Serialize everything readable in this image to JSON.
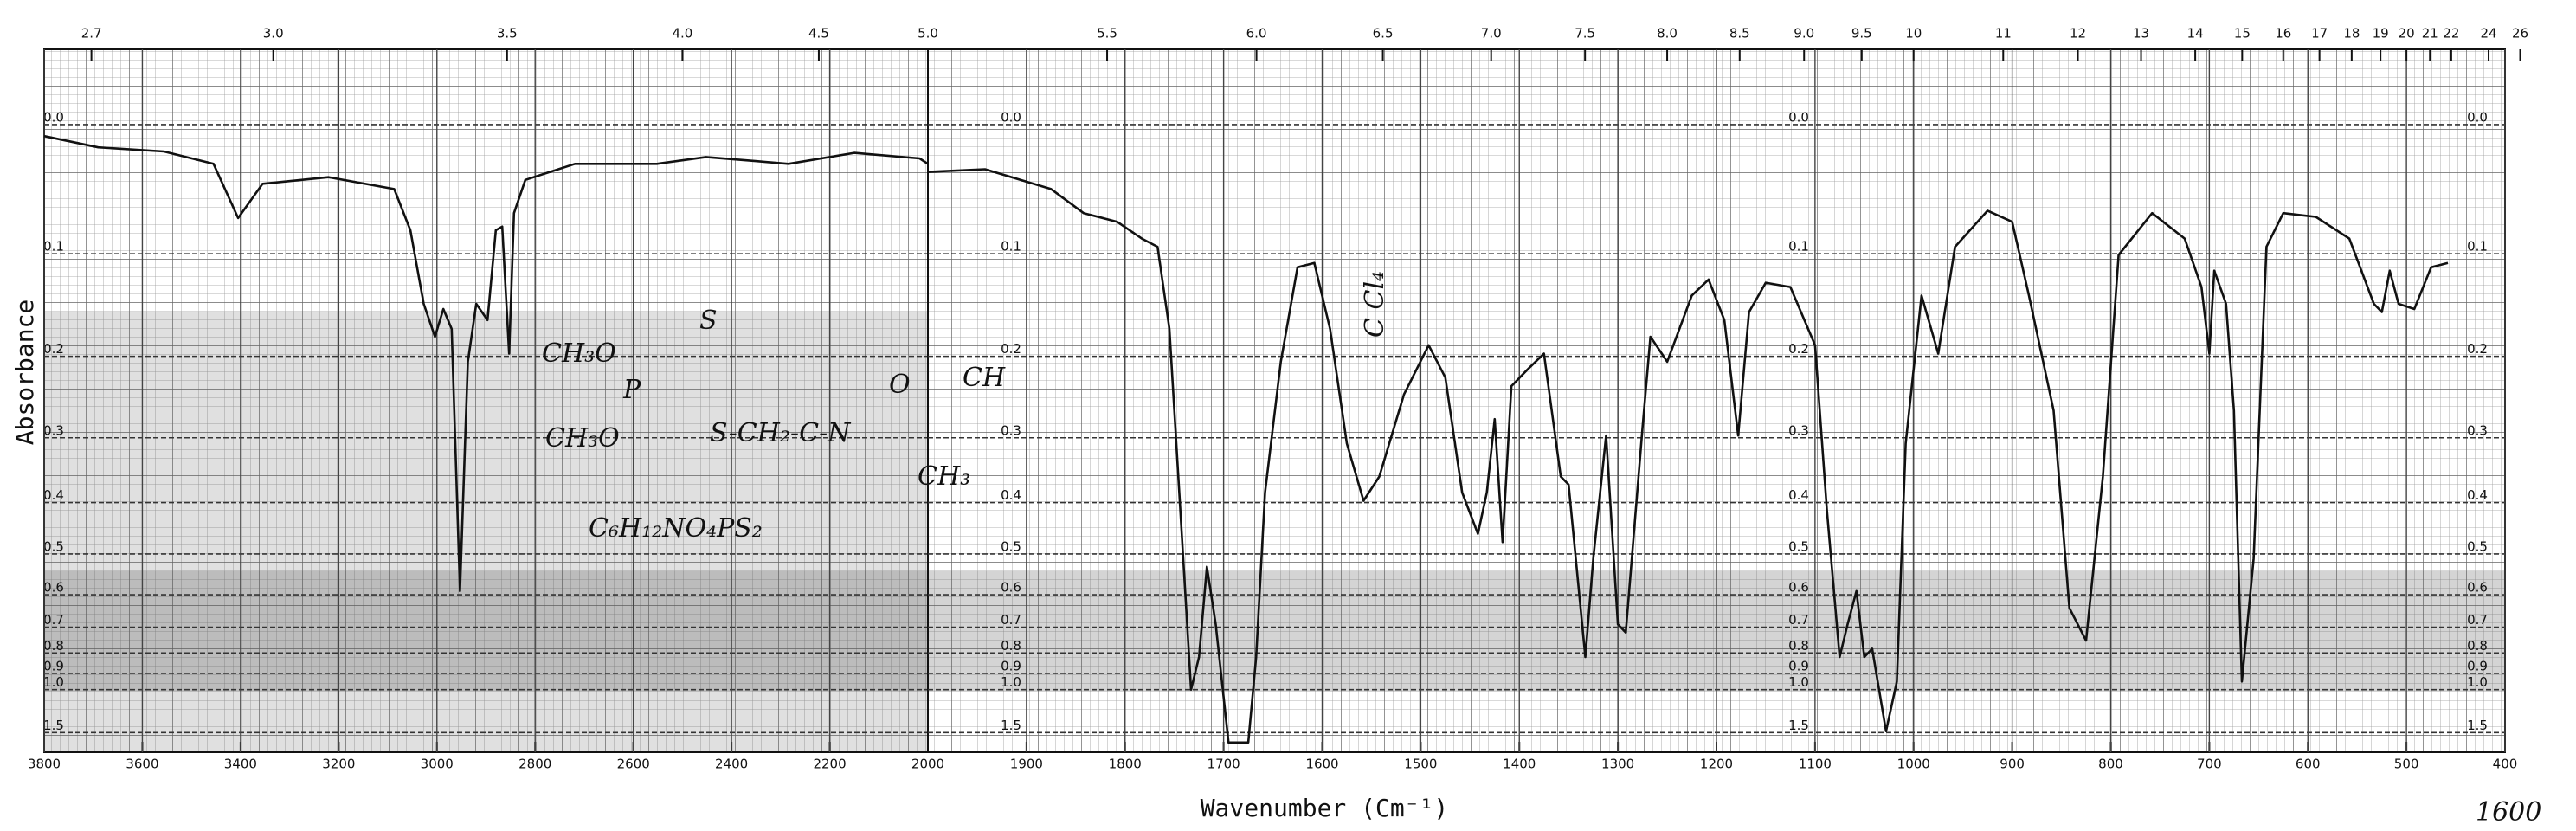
{
  "figure": {
    "ylabel": "Absorbance",
    "xlabel": "Wavenumber (Cm⁻¹)",
    "annotations": [
      "C Cl₄",
      "CH₃O",
      "S",
      "CH₃O",
      "P",
      "S-CH₂-C-N",
      "O",
      "CH",
      "CH₃",
      "C₆H₁₂NO₄PS₂",
      "1600"
    ]
  },
  "chart_data": [
    {
      "type": "line",
      "xlim": [
        3800,
        2000
      ],
      "ylim": [
        2,
        -0.04
      ],
      "yscale": "transmittance",
      "grid": true,
      "x2_scale": "reciprocal",
      "xticks": [
        3800,
        3600,
        3400,
        3200,
        3000,
        2800,
        2600,
        2400,
        2200,
        2000
      ],
      "x2ticks": [
        2.7,
        {
          "value": 3,
          "label": "3.0"
        },
        3.5,
        {
          "value": 4,
          "label": "4.0"
        },
        4.5,
        {
          "value": 5,
          "label": "5.0"
        }
      ],
      "yticks": [
        {
          "value": 0,
          "label": "0.0"
        },
        0.1,
        0.2,
        0.3,
        0.4,
        0.5,
        0.6,
        0.7,
        0.8,
        0.9,
        {
          "value": 1,
          "label": "1.0"
        },
        1.5
      ],
      "x": [
        3800,
        3690,
        3556,
        3455,
        3405,
        3355,
        3221,
        3087,
        3054,
        3027,
        3004,
        2987,
        2970,
        2953,
        2937,
        2920,
        2897,
        2880,
        2867,
        2853,
        2843,
        2820,
        2719,
        2552,
        2452,
        2351,
        2284,
        2150,
        2017,
        2000
      ],
      "series": [
        {
          "color": "#111111",
          "values": [
            0.008,
            0.016,
            0.019,
            0.028,
            0.07,
            0.043,
            0.038,
            0.047,
            0.08,
            0.146,
            0.179,
            0.151,
            0.171,
            0.59,
            0.206,
            0.146,
            0.162,
            0.08,
            0.077,
            0.197,
            0.066,
            0.04,
            0.028,
            0.028,
            0.023,
            0.026,
            0.028,
            0.02,
            0.024,
            0.028
          ]
        }
      ]
    },
    {
      "type": "line",
      "xlim": [
        2000,
        400
      ],
      "ylim": [
        2,
        -0.04
      ],
      "yscale": "transmittance",
      "grid": true,
      "x2_scale": "reciprocal",
      "xticks": [
        1900,
        1800,
        1700,
        1600,
        1500,
        1400,
        1300,
        1200,
        1100,
        1000,
        900,
        800,
        700,
        600,
        500,
        400
      ],
      "x2ticks": [
        5.5,
        {
          "value": 6,
          "label": "6.0"
        },
        6.5,
        {
          "value": 7,
          "label": "7.0"
        },
        7.5,
        {
          "value": 8,
          "label": "8.0"
        },
        8.5,
        {
          "value": 9,
          "label": "9.0"
        },
        9.5,
        10,
        11,
        12,
        13,
        14,
        15,
        16,
        17,
        18,
        19,
        20,
        21,
        22,
        24,
        26
      ],
      "yticks": [
        {
          "value": 0,
          "label": "0.0"
        },
        0.1,
        0.2,
        0.3,
        0.4,
        0.5,
        0.6,
        0.7,
        0.8,
        0.9,
        {
          "value": 1,
          "label": "1.0"
        },
        1.5
      ],
      "x": [
        2000,
        1942,
        1875,
        1842,
        1808,
        1783,
        1767,
        1755,
        1745,
        1733,
        1725,
        1717,
        1708,
        1695,
        1675,
        1667,
        1658,
        1642,
        1625,
        1608,
        1592,
        1575,
        1558,
        1542,
        1517,
        1492,
        1475,
        1458,
        1442,
        1433,
        1425,
        1417,
        1408,
        1392,
        1375,
        1358,
        1350,
        1333,
        1325,
        1312,
        1300,
        1292,
        1275,
        1267,
        1250,
        1225,
        1208,
        1192,
        1178,
        1167,
        1150,
        1125,
        1100,
        1088,
        1075,
        1067,
        1058,
        1050,
        1042,
        1028,
        1017,
        1008,
        992,
        975,
        958,
        925,
        900,
        883,
        858,
        842,
        825,
        808,
        792,
        758,
        725,
        708,
        700,
        695,
        683,
        675,
        667,
        655,
        642,
        625,
        592,
        558,
        533,
        525,
        517,
        508,
        492,
        475,
        458
      ],
      "series": [
        {
          "color": "#111111",
          "values": [
            0.034,
            0.032,
            0.047,
            0.066,
            0.073,
            0.087,
            0.094,
            0.171,
            0.383,
            1.0,
            0.818,
            0.529,
            0.69,
            1.8,
            1.8,
            0.818,
            0.383,
            0.206,
            0.112,
            0.108,
            0.171,
            0.308,
            0.397,
            0.357,
            0.244,
            0.188,
            0.224,
            0.383,
            0.458,
            0.383,
            0.275,
            0.475,
            0.234,
            0.215,
            0.197,
            0.357,
            0.37,
            0.818,
            0.51,
            0.297,
            0.69,
            0.719,
            0.286,
            0.179,
            0.206,
            0.138,
            0.123,
            0.162,
            0.297,
            0.154,
            0.126,
            0.13,
            0.188,
            0.412,
            0.818,
            0.69,
            0.59,
            0.818,
            0.782,
            1.47,
            0.947,
            0.308,
            0.138,
            0.197,
            0.094,
            0.064,
            0.073,
            0.138,
            0.264,
            0.638,
            0.749,
            0.357,
            0.101,
            0.066,
            0.087,
            0.13,
            0.197,
            0.115,
            0.146,
            0.264,
            0.947,
            0.51,
            0.094,
            0.066,
            0.069,
            0.087,
            0.146,
            0.154,
            0.115,
            0.146,
            0.151,
            0.112,
            0.108
          ]
        }
      ]
    }
  ]
}
